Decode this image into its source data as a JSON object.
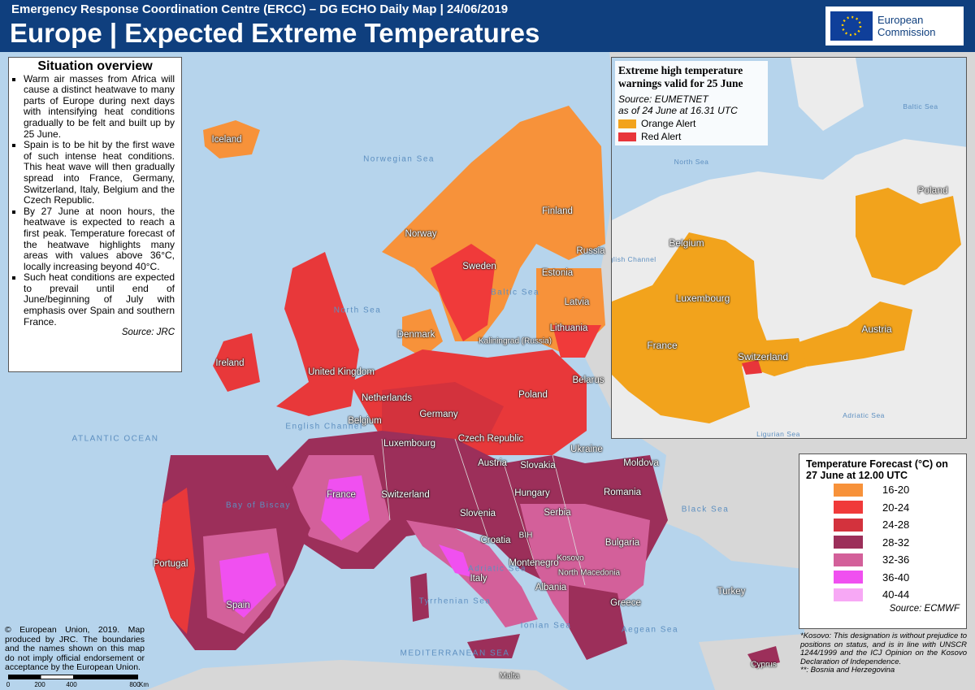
{
  "header": {
    "supertitle": "Emergency Response Coordination Centre (ERCC) – DG ECHO Daily Map | 24/06/2019",
    "title": "Europe | Expected Extreme Temperatures",
    "logo": "European Commission"
  },
  "overview": {
    "title": "Situation overview",
    "bullets": [
      "Warm air masses from Africa will cause a distinct heatwave to many parts of Europe during next days with intensifying heat conditions gradually to be felt and built up by 25 June.",
      "Spain is to be hit by the first wave of such intense heat conditions. This heat wave will then gradually spread into France, Germany, Switzerland, Italy, Belgium and the Czech Republic.",
      "By 27 June at noon hours, the heatwave is expected to reach a first peak. Temperature forecast of the heatwave highlights many areas with values above 36°C, locally increasing beyond 40°C.",
      "Such heat conditions are expected to prevail until end of June/beginning of July with emphasis over Spain and southern France."
    ],
    "source": "Source: JRC"
  },
  "inset": {
    "title": "Extreme high temperature warnings valid for 25 June",
    "source": "Source: EUMETNET",
    "as_of": "as of 24 June at 16.31 UTC",
    "legend": [
      {
        "label": "Orange Alert",
        "color": "#f2a31c"
      },
      {
        "label": "Red Alert",
        "color": "#e8353a"
      }
    ],
    "labels": [
      "Poland",
      "Belgium",
      "Luxembourg",
      "France",
      "Switzerland",
      "Austria"
    ],
    "sea_labels": [
      "Baltic Sea",
      "North Sea",
      "English Channel",
      "Ligurian Sea",
      "Adriatic Sea"
    ]
  },
  "forecast": {
    "title": "Temperature Forecast (°C) on 27 June at 12.00 UTC",
    "items": [
      {
        "label": "16-20",
        "color": "#f7923a"
      },
      {
        "label": "20-24",
        "color": "#f03a3a"
      },
      {
        "label": "24-28",
        "color": "#d3323d"
      },
      {
        "label": "28-32",
        "color": "#9c2f5a"
      },
      {
        "label": "32-36",
        "color": "#d3609a"
      },
      {
        "label": "36-40",
        "color": "#f050f0"
      },
      {
        "label": "40-44",
        "color": "#f7a8f5"
      }
    ],
    "source": "Source: ECMWF"
  },
  "copyright": "© European Union, 2019. Map produced by JRC. The boundaries and the names shown on this map do not imply official endorsement or acceptance by the European Union.",
  "scale": {
    "ticks": [
      "0",
      "200",
      "400",
      "800"
    ],
    "unit": "Km"
  },
  "note": [
    "*Kosovo: This designation is without prejudice to positions on status, and is in line with UNSCR 1244/1999 and the ICJ Opinion on the Kosovo Declaration of Independence.",
    "**: Bosnia and Herzegovina"
  ],
  "map_labels": [
    "Iceland",
    "Norway",
    "Sweden",
    "Finland",
    "Russia",
    "Estonia",
    "Latvia",
    "Lithuania",
    "Denmark",
    "Ireland",
    "United Kingdom",
    "Netherlands",
    "Belgium",
    "Germany",
    "Luxembourg",
    "Poland",
    "Belarus",
    "Czech Republic",
    "Ukraine",
    "Slovakia",
    "Austria",
    "Moldova",
    "Hungary",
    "Romania",
    "France",
    "Switzerland",
    "Slovenia",
    "Croatia",
    "Serbia",
    "BIH",
    "Kosovo",
    "Montenegro",
    "Bulgaria",
    "North Macedonia",
    "Albania",
    "Italy",
    "Greece",
    "Turkey",
    "Portugal",
    "Spain",
    "Malta",
    "Cyprus",
    "Kaliningrad (Russia)"
  ],
  "sea_labels": [
    "Norwegian Sea",
    "North Sea",
    "Baltic Sea",
    "ATLANTIC OCEAN",
    "Bay of Biscay",
    "Black Sea",
    "Tyrrhenian Sea",
    "Adriatic Sea",
    "Ionian Sea",
    "Aegean Sea",
    "MEDITERRANEAN SEA",
    "English Channel"
  ]
}
